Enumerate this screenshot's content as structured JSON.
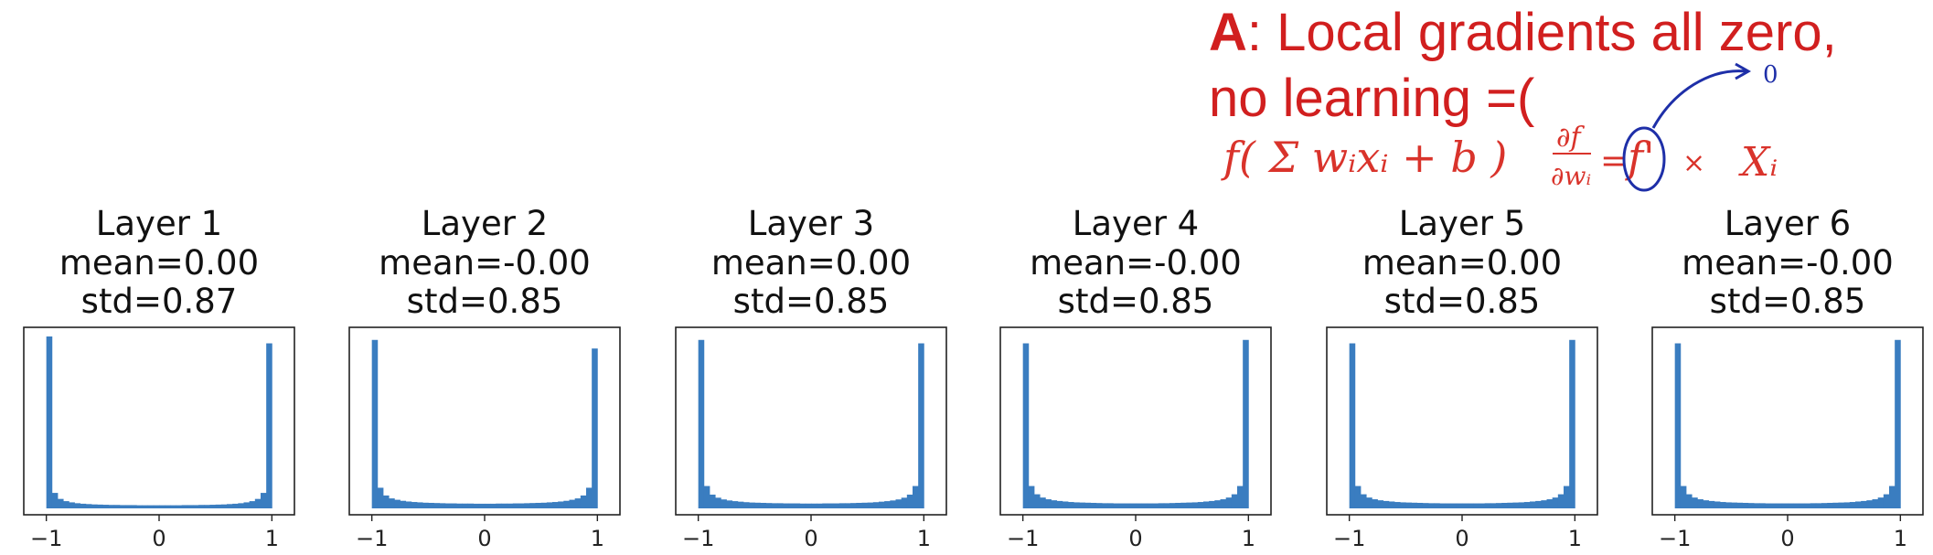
{
  "annotation": {
    "answer_letter": "A",
    "answer_text": ": Local gradients all zero,",
    "answer_line2": "no learning =(",
    "handwritten_left": "f( Σ wᵢxᵢ + b )",
    "handwritten_partial_num": "∂f",
    "handwritten_partial_den": "∂wᵢ",
    "handwritten_eq": "=",
    "handwritten_fprime": "f'",
    "handwritten_times": "×",
    "handwritten_xi": "Xᵢ",
    "handwritten_zero": "0",
    "colors": {
      "answer_text": "#d11f1f",
      "handwriting_red": "#d9332b",
      "handwriting_blue": "#1e2fa8"
    }
  },
  "chart_data": [
    {
      "type": "bar",
      "title": [
        "Layer 1",
        "mean=0.00",
        "std=0.87"
      ],
      "xlim": [
        -1.2,
        1.2
      ],
      "xticks": [
        "-1",
        "0",
        "1"
      ],
      "bins_center_values": [
        -0.975,
        -0.925,
        -0.875,
        -0.825,
        -0.775,
        -0.725,
        -0.675,
        -0.625,
        -0.575,
        -0.525,
        -0.475,
        -0.425,
        -0.375,
        -0.325,
        -0.275,
        -0.225,
        -0.175,
        -0.125,
        -0.075,
        -0.025,
        0.025,
        0.075,
        0.125,
        0.175,
        0.225,
        0.275,
        0.325,
        0.375,
        0.425,
        0.475,
        0.525,
        0.575,
        0.625,
        0.675,
        0.725,
        0.775,
        0.825,
        0.875,
        0.925,
        0.975
      ],
      "relative_heights": [
        1.0,
        0.09,
        0.055,
        0.042,
        0.035,
        0.03,
        0.027,
        0.025,
        0.023,
        0.022,
        0.021,
        0.02,
        0.02,
        0.019,
        0.019,
        0.019,
        0.018,
        0.018,
        0.018,
        0.018,
        0.018,
        0.018,
        0.018,
        0.018,
        0.019,
        0.019,
        0.019,
        0.02,
        0.02,
        0.021,
        0.022,
        0.023,
        0.025,
        0.027,
        0.03,
        0.035,
        0.042,
        0.055,
        0.09,
        0.96
      ],
      "color": "#3a7dc0"
    },
    {
      "type": "bar",
      "title": [
        "Layer 2",
        "mean=-0.00",
        "std=0.85"
      ],
      "xlim": [
        -1.2,
        1.2
      ],
      "xticks": [
        "-1",
        "0",
        "1"
      ],
      "bins_center_values": [
        -0.975,
        -0.925,
        -0.875,
        -0.825,
        -0.775,
        -0.725,
        -0.675,
        -0.625,
        -0.575,
        -0.525,
        -0.475,
        -0.425,
        -0.375,
        -0.325,
        -0.275,
        -0.225,
        -0.175,
        -0.125,
        -0.075,
        -0.025,
        0.025,
        0.075,
        0.125,
        0.175,
        0.225,
        0.275,
        0.325,
        0.375,
        0.425,
        0.475,
        0.525,
        0.575,
        0.625,
        0.675,
        0.725,
        0.775,
        0.825,
        0.875,
        0.925,
        0.975
      ],
      "relative_heights": [
        0.98,
        0.12,
        0.075,
        0.058,
        0.05,
        0.044,
        0.04,
        0.037,
        0.035,
        0.033,
        0.032,
        0.031,
        0.03,
        0.029,
        0.029,
        0.028,
        0.028,
        0.028,
        0.027,
        0.027,
        0.027,
        0.027,
        0.028,
        0.028,
        0.028,
        0.029,
        0.029,
        0.03,
        0.031,
        0.032,
        0.033,
        0.035,
        0.037,
        0.04,
        0.044,
        0.05,
        0.058,
        0.075,
        0.12,
        0.93
      ],
      "color": "#3a7dc0"
    },
    {
      "type": "bar",
      "title": [
        "Layer 3",
        "mean=0.00",
        "std=0.85"
      ],
      "xlim": [
        -1.2,
        1.2
      ],
      "xticks": [
        "-1",
        "0",
        "1"
      ],
      "bins_center_values": [
        -0.975,
        -0.925,
        -0.875,
        -0.825,
        -0.775,
        -0.725,
        -0.675,
        -0.625,
        -0.575,
        -0.525,
        -0.475,
        -0.425,
        -0.375,
        -0.325,
        -0.275,
        -0.225,
        -0.175,
        -0.125,
        -0.075,
        -0.025,
        0.025,
        0.075,
        0.125,
        0.175,
        0.225,
        0.275,
        0.325,
        0.375,
        0.425,
        0.475,
        0.525,
        0.575,
        0.625,
        0.675,
        0.725,
        0.775,
        0.825,
        0.875,
        0.925,
        0.975
      ],
      "relative_heights": [
        0.98,
        0.13,
        0.08,
        0.062,
        0.052,
        0.046,
        0.042,
        0.039,
        0.036,
        0.034,
        0.033,
        0.032,
        0.031,
        0.03,
        0.03,
        0.029,
        0.029,
        0.029,
        0.028,
        0.028,
        0.028,
        0.028,
        0.029,
        0.029,
        0.029,
        0.03,
        0.03,
        0.031,
        0.032,
        0.033,
        0.034,
        0.036,
        0.039,
        0.042,
        0.046,
        0.052,
        0.062,
        0.08,
        0.13,
        0.96
      ],
      "color": "#3a7dc0"
    },
    {
      "type": "bar",
      "title": [
        "Layer 4",
        "mean=-0.00",
        "std=0.85"
      ],
      "xlim": [
        -1.2,
        1.2
      ],
      "xticks": [
        "-1",
        "0",
        "1"
      ],
      "bins_center_values": [
        -0.975,
        -0.925,
        -0.875,
        -0.825,
        -0.775,
        -0.725,
        -0.675,
        -0.625,
        -0.575,
        -0.525,
        -0.475,
        -0.425,
        -0.375,
        -0.325,
        -0.275,
        -0.225,
        -0.175,
        -0.125,
        -0.075,
        -0.025,
        0.025,
        0.075,
        0.125,
        0.175,
        0.225,
        0.275,
        0.325,
        0.375,
        0.425,
        0.475,
        0.525,
        0.575,
        0.625,
        0.675,
        0.725,
        0.775,
        0.825,
        0.875,
        0.925,
        0.975
      ],
      "relative_heights": [
        0.96,
        0.13,
        0.082,
        0.063,
        0.053,
        0.047,
        0.043,
        0.04,
        0.037,
        0.035,
        0.034,
        0.033,
        0.032,
        0.031,
        0.03,
        0.03,
        0.029,
        0.029,
        0.029,
        0.029,
        0.029,
        0.029,
        0.029,
        0.029,
        0.03,
        0.03,
        0.031,
        0.032,
        0.033,
        0.034,
        0.035,
        0.037,
        0.04,
        0.043,
        0.047,
        0.053,
        0.063,
        0.082,
        0.13,
        0.98
      ],
      "color": "#3a7dc0"
    },
    {
      "type": "bar",
      "title": [
        "Layer 5",
        "mean=0.00",
        "std=0.85"
      ],
      "xlim": [
        -1.2,
        1.2
      ],
      "xticks": [
        "-1",
        "0",
        "1"
      ],
      "bins_center_values": [
        -0.975,
        -0.925,
        -0.875,
        -0.825,
        -0.775,
        -0.725,
        -0.675,
        -0.625,
        -0.575,
        -0.525,
        -0.475,
        -0.425,
        -0.375,
        -0.325,
        -0.275,
        -0.225,
        -0.175,
        -0.125,
        -0.075,
        -0.025,
        0.025,
        0.075,
        0.125,
        0.175,
        0.225,
        0.275,
        0.325,
        0.375,
        0.425,
        0.475,
        0.525,
        0.575,
        0.625,
        0.675,
        0.725,
        0.775,
        0.825,
        0.875,
        0.925,
        0.975
      ],
      "relative_heights": [
        0.96,
        0.13,
        0.082,
        0.063,
        0.053,
        0.047,
        0.043,
        0.04,
        0.037,
        0.035,
        0.034,
        0.033,
        0.032,
        0.031,
        0.03,
        0.03,
        0.029,
        0.029,
        0.029,
        0.029,
        0.029,
        0.029,
        0.029,
        0.029,
        0.03,
        0.03,
        0.031,
        0.032,
        0.033,
        0.034,
        0.035,
        0.037,
        0.04,
        0.043,
        0.047,
        0.053,
        0.063,
        0.082,
        0.13,
        0.98
      ],
      "color": "#3a7dc0"
    },
    {
      "type": "bar",
      "title": [
        "Layer 6",
        "mean=-0.00",
        "std=0.85"
      ],
      "xlim": [
        -1.2,
        1.2
      ],
      "xticks": [
        "-1",
        "0",
        "1"
      ],
      "bins_center_values": [
        -0.975,
        -0.925,
        -0.875,
        -0.825,
        -0.775,
        -0.725,
        -0.675,
        -0.625,
        -0.575,
        -0.525,
        -0.475,
        -0.425,
        -0.375,
        -0.325,
        -0.275,
        -0.225,
        -0.175,
        -0.125,
        -0.075,
        -0.025,
        0.025,
        0.075,
        0.125,
        0.175,
        0.225,
        0.275,
        0.325,
        0.375,
        0.425,
        0.475,
        0.525,
        0.575,
        0.625,
        0.675,
        0.725,
        0.775,
        0.825,
        0.875,
        0.925,
        0.975
      ],
      "relative_heights": [
        0.96,
        0.13,
        0.082,
        0.063,
        0.053,
        0.047,
        0.043,
        0.04,
        0.037,
        0.035,
        0.034,
        0.033,
        0.032,
        0.031,
        0.03,
        0.03,
        0.029,
        0.029,
        0.029,
        0.029,
        0.029,
        0.029,
        0.029,
        0.029,
        0.03,
        0.03,
        0.031,
        0.032,
        0.033,
        0.034,
        0.035,
        0.037,
        0.04,
        0.043,
        0.047,
        0.053,
        0.063,
        0.082,
        0.13,
        0.98
      ],
      "color": "#3a7dc0"
    }
  ]
}
